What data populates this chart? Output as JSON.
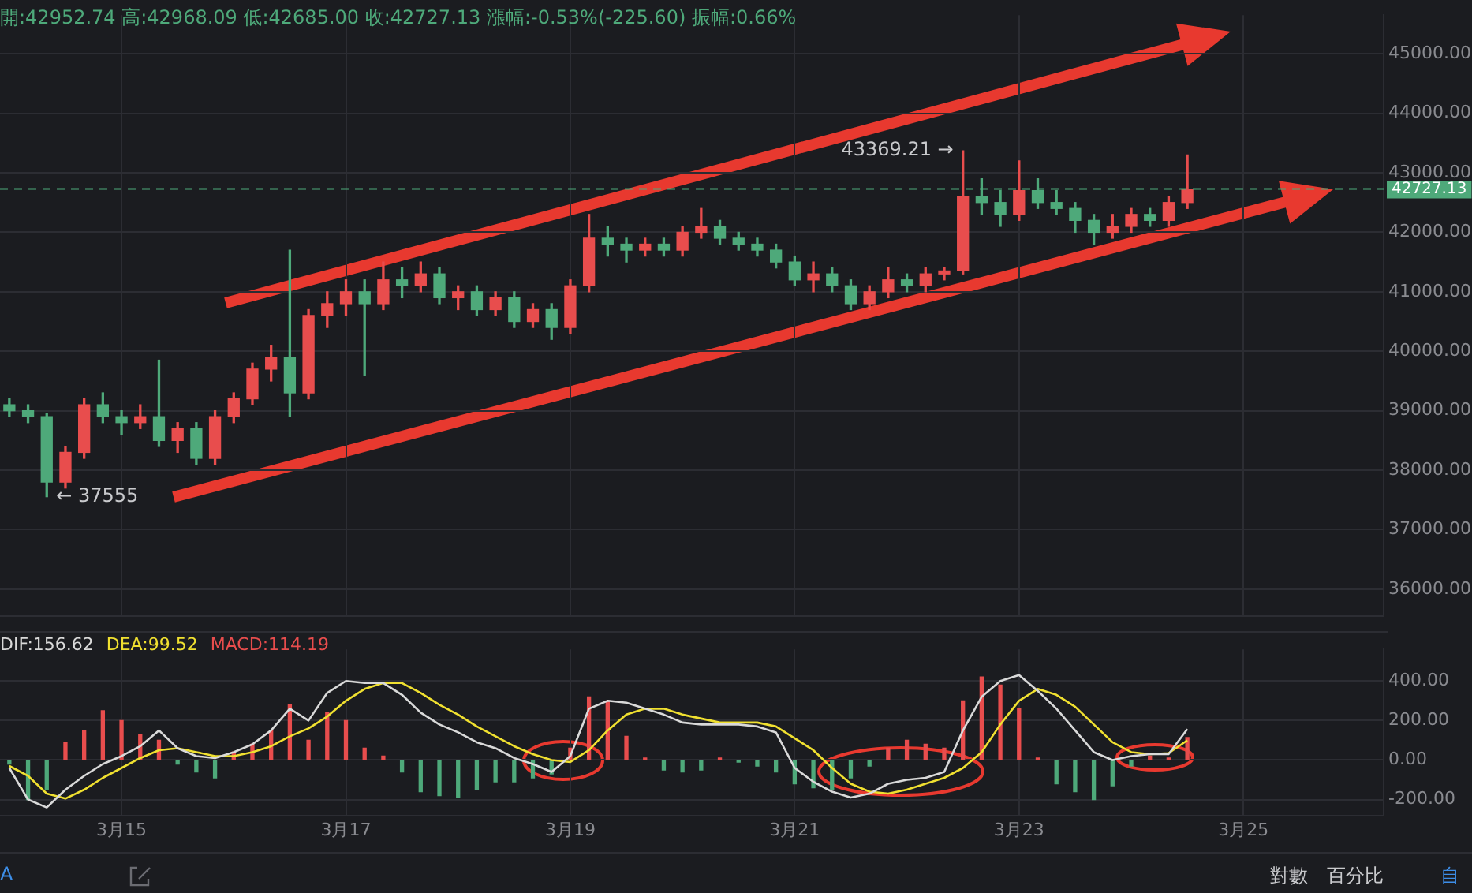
{
  "chart_data": [
    {
      "type": "candlestick",
      "subtitle": "開:42952.74  高:42968.09  低:42685.00  收:42727.13  漲幅:-0.53%(-225.60)  振幅:0.66%",
      "categories": [
        null,
        null,
        null,
        null,
        null,
        null,
        null,
        null,
        null,
        null,
        null,
        null,
        null,
        null,
        null,
        null,
        null,
        null,
        null,
        null,
        null,
        null,
        null,
        null,
        null,
        null,
        null,
        null,
        null,
        null,
        null,
        null,
        null,
        null,
        null,
        null,
        null,
        null,
        null,
        null,
        null,
        null,
        null,
        null,
        null,
        null,
        null,
        null,
        null,
        null,
        null,
        null,
        null,
        null,
        null,
        null,
        null,
        null,
        null,
        null,
        null,
        null,
        null,
        null,
        null,
        null,
        null,
        null,
        null,
        null,
        null,
        null,
        null,
        null
      ],
      "ohlc": [
        [
          39100,
          39200,
          38900,
          39000
        ],
        [
          39000,
          39100,
          38800,
          38900
        ],
        [
          38900,
          38950,
          37555,
          37800
        ],
        [
          37800,
          38400,
          37700,
          38300
        ],
        [
          38300,
          39200,
          38200,
          39100
        ],
        [
          39100,
          39300,
          38800,
          38900
        ],
        [
          38900,
          39000,
          38600,
          38800
        ],
        [
          38800,
          39100,
          38700,
          38900
        ],
        [
          38900,
          39850,
          38400,
          38500
        ],
        [
          38500,
          38800,
          38300,
          38700
        ],
        [
          38700,
          38800,
          38100,
          38200
        ],
        [
          38200,
          39000,
          38100,
          38900
        ],
        [
          38900,
          39300,
          38800,
          39200
        ],
        [
          39200,
          39800,
          39100,
          39700
        ],
        [
          39700,
          40100,
          39500,
          39900
        ],
        [
          39900,
          41700,
          38900,
          39300
        ],
        [
          39300,
          40700,
          39200,
          40600
        ],
        [
          40600,
          41000,
          40400,
          40800
        ],
        [
          40800,
          41200,
          40600,
          41000
        ],
        [
          41000,
          41200,
          39600,
          40800
        ],
        [
          40800,
          41500,
          40700,
          41200
        ],
        [
          41200,
          41400,
          40900,
          41100
        ],
        [
          41100,
          41500,
          41000,
          41300
        ],
        [
          41300,
          41400,
          40800,
          40900
        ],
        [
          40900,
          41100,
          40700,
          41000
        ],
        [
          41000,
          41100,
          40600,
          40700
        ],
        [
          40700,
          41000,
          40600,
          40900
        ],
        [
          40900,
          41000,
          40400,
          40500
        ],
        [
          40500,
          40800,
          40400,
          40700
        ],
        [
          40700,
          40800,
          40200,
          40400
        ],
        [
          40400,
          41200,
          40300,
          41100
        ],
        [
          41100,
          42300,
          41000,
          41900
        ],
        [
          41900,
          42100,
          41600,
          41800
        ],
        [
          41800,
          41900,
          41500,
          41700
        ],
        [
          41700,
          41900,
          41600,
          41800
        ],
        [
          41800,
          41900,
          41600,
          41700
        ],
        [
          41700,
          42100,
          41600,
          42000
        ],
        [
          42000,
          42400,
          41900,
          42100
        ],
        [
          42100,
          42200,
          41800,
          41900
        ],
        [
          41900,
          42000,
          41700,
          41800
        ],
        [
          41800,
          41900,
          41600,
          41700
        ],
        [
          41700,
          41800,
          41400,
          41500
        ],
        [
          41500,
          41600,
          41100,
          41200
        ],
        [
          41200,
          41500,
          41000,
          41300
        ],
        [
          41300,
          41400,
          41000,
          41100
        ],
        [
          41100,
          41200,
          40700,
          40800
        ],
        [
          40800,
          41100,
          40700,
          41000
        ],
        [
          41000,
          41400,
          40900,
          41200
        ],
        [
          41200,
          41300,
          41000,
          41100
        ],
        [
          41100,
          41400,
          41000,
          41300
        ],
        [
          41300,
          41400,
          41200,
          41350
        ],
        [
          41350,
          43369.21,
          41300,
          42600
        ],
        [
          42600,
          42900,
          42300,
          42500
        ],
        [
          42500,
          42700,
          42100,
          42300
        ],
        [
          42300,
          43200,
          42200,
          42700
        ],
        [
          42700,
          42900,
          42400,
          42500
        ],
        [
          42500,
          42700,
          42300,
          42400
        ],
        [
          42400,
          42500,
          42000,
          42200
        ],
        [
          42200,
          42300,
          41800,
          42000
        ],
        [
          42000,
          42300,
          41900,
          42100
        ],
        [
          42100,
          42400,
          42000,
          42300
        ],
        [
          42300,
          42400,
          42100,
          42200
        ],
        [
          42200,
          42600,
          42100,
          42500
        ],
        [
          42500,
          43300,
          42400,
          42727.13
        ],
        null,
        null,
        null,
        null,
        null,
        null,
        null,
        null,
        null,
        null
      ],
      "colors": [
        "#4ea97a",
        "#4ea97a",
        "#4ea97a",
        "#e84d4d",
        "#e84d4d",
        "#4ea97a",
        "#4ea97a",
        "#e84d4d",
        "#4ea97a",
        "#e84d4d",
        "#4ea97a",
        "#e84d4d",
        "#e84d4d",
        "#e84d4d",
        "#e84d4d",
        "#4ea97a",
        "#e84d4d",
        "#e84d4d",
        "#e84d4d",
        "#4ea97a",
        "#e84d4d",
        "#4ea97a",
        "#e84d4d",
        "#4ea97a",
        "#e84d4d",
        "#4ea97a",
        "#e84d4d",
        "#4ea97a",
        "#e84d4d",
        "#4ea97a",
        "#e84d4d",
        "#e84d4d",
        "#4ea97a",
        "#4ea97a",
        "#e84d4d",
        "#4ea97a",
        "#e84d4d",
        "#e84d4d",
        "#4ea97a",
        "#4ea97a",
        "#4ea97a",
        "#4ea97a",
        "#4ea97a",
        "#e84d4d",
        "#4ea97a",
        "#4ea97a",
        "#e84d4d",
        "#e84d4d",
        "#4ea97a",
        "#e84d4d",
        "#e84d4d",
        "#e84d4d",
        "#4ea97a",
        "#4ea97a",
        "#e84d4d",
        "#4ea97a",
        "#4ea97a",
        "#4ea97a",
        "#4ea97a",
        "#e84d4d",
        "#e84d4d",
        "#4ea97a",
        "#e84d4d",
        "#e84d4d",
        null,
        null,
        null,
        null,
        null,
        null,
        null,
        null,
        null,
        null
      ],
      "ylim": [
        35550,
        45650
      ],
      "yticks": [
        {
          "value": 36000,
          "label": "36000.00"
        },
        {
          "value": 37000,
          "label": "37000.00"
        },
        {
          "value": 38000,
          "label": "38000.00"
        },
        {
          "value": 39000,
          "label": "39000.00"
        },
        {
          "value": 40000,
          "label": "40000.00"
        },
        {
          "value": 41000,
          "label": "41000.00"
        },
        {
          "value": 42000,
          "label": "42000.00"
        },
        {
          "value": 43000,
          "label": "43000.00"
        },
        {
          "value": 44000,
          "label": "44000.00"
        },
        {
          "value": 45000,
          "label": "45000.00"
        }
      ],
      "ref_lines": [
        {
          "axis": "y",
          "value": 42727.13,
          "label": "42727.13",
          "color": "#4ea97a",
          "line_style": "dashed"
        }
      ],
      "annotations": [
        "43369.21 →",
        "← 37555"
      ],
      "tick_labels": "y",
      "grid": true
    },
    {
      "type": "bar",
      "categories": [
        null,
        null,
        null,
        null,
        null,
        null,
        "3月15",
        null,
        null,
        null,
        null,
        null,
        null,
        null,
        null,
        null,
        null,
        null,
        "3月17",
        null,
        null,
        null,
        null,
        null,
        null,
        null,
        null,
        null,
        null,
        null,
        "3月19",
        null,
        null,
        null,
        null,
        null,
        null,
        null,
        null,
        null,
        null,
        null,
        "3月21",
        null,
        null,
        null,
        null,
        null,
        null,
        null,
        null,
        null,
        null,
        null,
        "3月23",
        null,
        null,
        null,
        null,
        null,
        null,
        null,
        null,
        null,
        null,
        null,
        "3月25",
        null,
        null,
        null,
        null,
        null,
        null,
        null
      ],
      "series": [
        {
          "name": "DIF:156.62",
          "type": "line",
          "color": "#d9d9d9",
          "values": [
            -40,
            -200,
            -240,
            -150,
            -80,
            -20,
            20,
            70,
            150,
            60,
            20,
            10,
            40,
            80,
            150,
            260,
            200,
            340,
            400,
            390,
            390,
            330,
            240,
            180,
            140,
            90,
            60,
            10,
            -20,
            -60,
            20,
            260,
            300,
            290,
            260,
            230,
            190,
            180,
            180,
            180,
            170,
            140,
            -40,
            -110,
            -160,
            -190,
            -170,
            -120,
            -100,
            -90,
            -60,
            150,
            320,
            400,
            430,
            350,
            260,
            150,
            40,
            0,
            20,
            30,
            30,
            156.62,
            null,
            null,
            null,
            null,
            null,
            null,
            null,
            null,
            null,
            null
          ]
        },
        {
          "name": "DEA:99.52",
          "type": "line",
          "color": "#f0e030",
          "values": [
            -30,
            -80,
            -170,
            -195,
            -150,
            -90,
            -40,
            10,
            50,
            60,
            40,
            20,
            20,
            40,
            70,
            120,
            160,
            220,
            300,
            360,
            390,
            390,
            340,
            280,
            230,
            170,
            120,
            70,
            30,
            0,
            -10,
            50,
            150,
            230,
            260,
            260,
            230,
            210,
            190,
            190,
            190,
            170,
            110,
            50,
            -40,
            -120,
            -160,
            -170,
            -150,
            -120,
            -90,
            -40,
            40,
            180,
            300,
            360,
            330,
            270,
            180,
            90,
            40,
            30,
            35,
            99.52,
            null,
            null,
            null,
            null,
            null,
            null,
            null,
            null,
            null,
            null
          ]
        },
        {
          "name": "MACD:114.19",
          "type": "bar",
          "color": "#e84d4d",
          "colors": [
            "#4ea97a",
            "#4ea97a",
            "#4ea97a",
            "#e84d4d",
            "#e84d4d",
            "#e84d4d",
            "#e84d4d",
            "#e84d4d",
            "#e84d4d",
            "#4ea97a",
            "#4ea97a",
            "#4ea97a",
            "#e84d4d",
            "#e84d4d",
            "#e84d4d",
            "#e84d4d",
            "#e84d4d",
            "#e84d4d",
            "#e84d4d",
            "#e84d4d",
            "#e84d4d",
            "#4ea97a",
            "#4ea97a",
            "#4ea97a",
            "#4ea97a",
            "#4ea97a",
            "#4ea97a",
            "#4ea97a",
            "#4ea97a",
            "#4ea97a",
            "#e84d4d",
            "#e84d4d",
            "#e84d4d",
            "#e84d4d",
            "#e84d4d",
            "#4ea97a",
            "#4ea97a",
            "#4ea97a",
            "#e84d4d",
            "#4ea97a",
            "#4ea97a",
            "#4ea97a",
            "#4ea97a",
            "#4ea97a",
            "#4ea97a",
            "#4ea97a",
            "#4ea97a",
            "#e84d4d",
            "#e84d4d",
            "#e84d4d",
            "#e84d4d",
            "#e84d4d",
            "#e84d4d",
            "#e84d4d",
            "#e84d4d",
            "#e84d4d",
            "#4ea97a",
            "#4ea97a",
            "#4ea97a",
            "#4ea97a",
            "#4ea97a",
            "#e84d4d",
            "#e84d4d",
            "#e84d4d",
            null,
            null,
            null,
            null,
            null,
            null,
            null,
            null,
            null,
            null
          ],
          "values": [
            -20,
            -200,
            -150,
            90,
            150,
            250,
            200,
            130,
            100,
            -20,
            -60,
            -90,
            40,
            80,
            150,
            280,
            100,
            240,
            200,
            60,
            20,
            -60,
            -160,
            -180,
            -190,
            -150,
            -110,
            -110,
            -90,
            -70,
            60,
            320,
            300,
            120,
            10,
            -50,
            -60,
            -50,
            10,
            -10,
            -30,
            -60,
            -120,
            -140,
            -150,
            -90,
            -30,
            60,
            100,
            80,
            60,
            300,
            420,
            380,
            260,
            10,
            -120,
            -160,
            -200,
            -130,
            -30,
            20,
            10,
            114.19,
            null,
            null,
            null,
            null,
            null,
            null,
            null,
            null,
            null,
            null
          ]
        }
      ],
      "ylim": [
        -280,
        560
      ],
      "yticks": [
        {
          "value": -200,
          "label": "-200.00"
        },
        {
          "value": 0,
          "label": "0.00"
        },
        {
          "value": 200,
          "label": "200.00"
        },
        {
          "value": 400,
          "label": "400.00"
        }
      ],
      "legend": "top left",
      "marker": "none",
      "line_style": "solid",
      "grid": true,
      "annotations": [
        "A",
        "對數",
        "百分比",
        "自"
      ]
    }
  ]
}
